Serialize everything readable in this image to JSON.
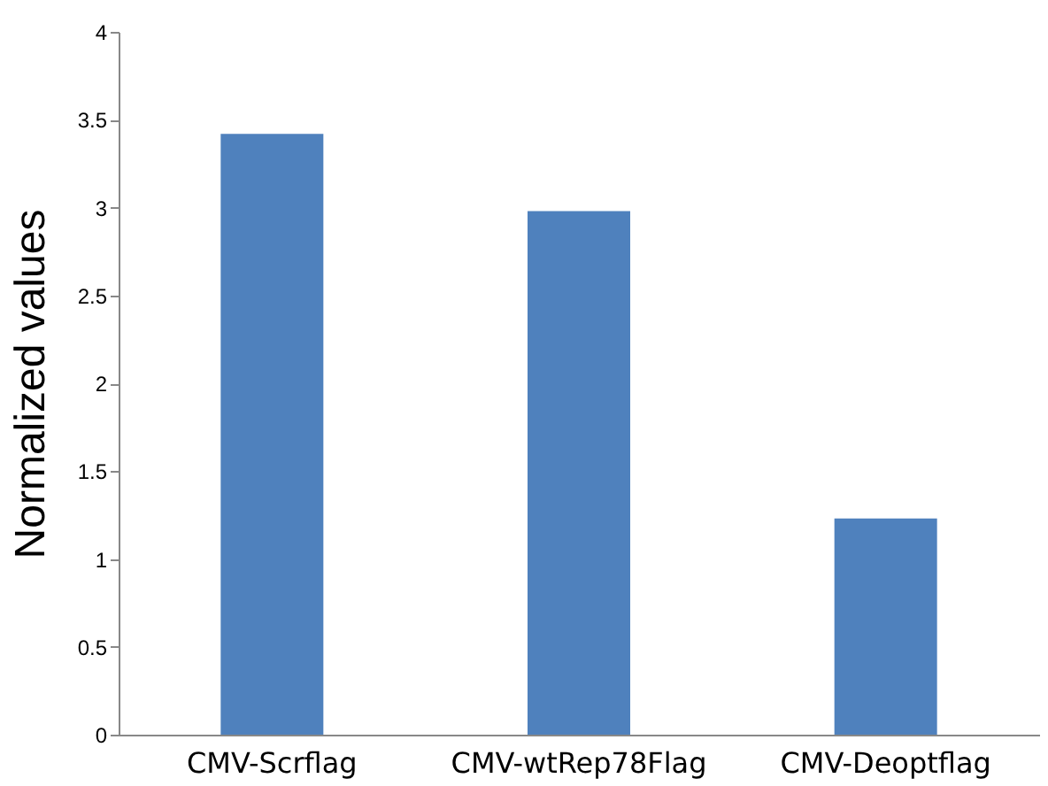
{
  "chart_data": {
    "type": "bar",
    "ylabel": "Normalized values",
    "categories": [
      "CMV-Scrflag",
      "CMV-wtRep78Flag",
      "CMV-Deoptflag"
    ],
    "values": [
      3.42,
      2.98,
      1.23
    ],
    "color": "#4f81bd",
    "ylim": [
      0,
      4
    ],
    "yticks": [
      0,
      0.5,
      1,
      1.5,
      2,
      2.5,
      3,
      3.5,
      4
    ],
    "grid": false
  }
}
